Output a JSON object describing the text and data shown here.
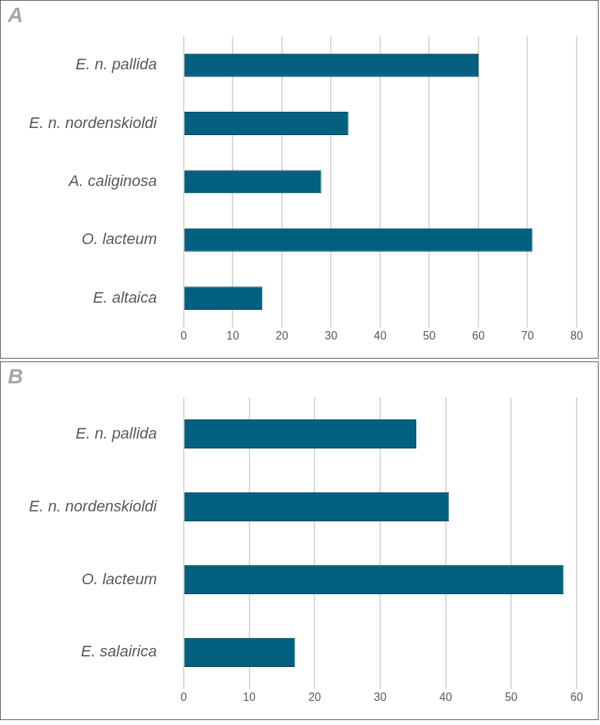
{
  "chart_data": [
    {
      "type": "bar",
      "title": "A",
      "orientation": "horizontal",
      "categories": [
        "E. n. pallida",
        "E. n. nordenskioldi",
        "A. caliginosa",
        "O. lacteum",
        "E. altaica"
      ],
      "values": [
        60,
        33.5,
        28,
        71,
        16
      ],
      "color": "#03607f",
      "xlim": [
        0,
        80
      ],
      "xticks": [
        0,
        10,
        20,
        30,
        40,
        50,
        60,
        70,
        80
      ],
      "grid": "x"
    },
    {
      "type": "bar",
      "title": "B",
      "orientation": "horizontal",
      "categories": [
        "E. n. pallida",
        "E. n. nordenskioldi",
        "O. lacteum",
        "E. salairica"
      ],
      "values": [
        35.5,
        40.5,
        58,
        17
      ],
      "color": "#03607f",
      "xlim": [
        0,
        60
      ],
      "xticks": [
        0,
        10,
        20,
        30,
        40,
        50,
        60
      ],
      "grid": "x"
    }
  ]
}
